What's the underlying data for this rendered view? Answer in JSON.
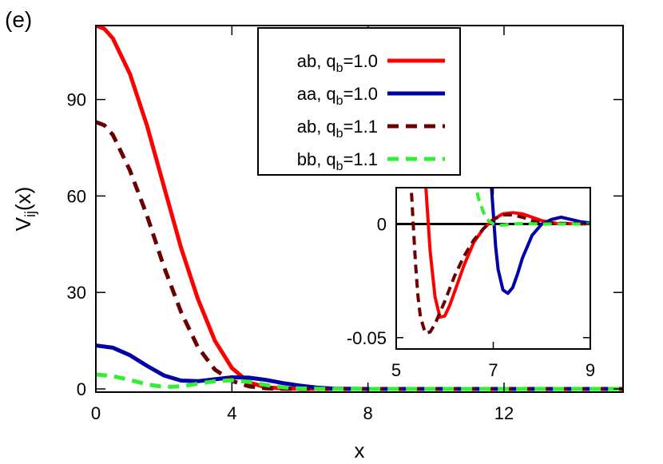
{
  "panel_label": "(e)",
  "colors": {
    "ab_q1_0": "#ff0000",
    "aa_q1_0": "#0000a8",
    "ab_q1_1": "#6b0000",
    "bb_q1_1": "#33ee33",
    "zero_line": "#000000"
  },
  "chart_data": [
    {
      "id": "main",
      "type": "line",
      "xlabel": "x",
      "ylabel": "V",
      "ylabel_sub": "ij",
      "ylabel_suffix": "(x)",
      "xlim": [
        0,
        15.5
      ],
      "ylim": [
        -1,
        113
      ],
      "x_ticks": [
        "0",
        "4",
        "8",
        "12"
      ],
      "x_tick_values": [
        0,
        4,
        8,
        12
      ],
      "y_ticks": [
        "0",
        "30",
        "60",
        "90"
      ],
      "y_tick_values": [
        0,
        30,
        60,
        90
      ],
      "legend_position": "top-center",
      "series": [
        {
          "key": "ab_q1_0",
          "name": "ab, q",
          "sub": "b",
          "suffix": "=1.0",
          "style": "solid",
          "x": [
            0,
            0.25,
            0.5,
            1.0,
            1.5,
            2.0,
            2.5,
            3.0,
            3.5,
            4.0,
            4.5,
            5.0,
            5.5,
            6.0,
            7.0,
            8.0,
            10.0,
            12.0,
            15.5
          ],
          "y": [
            113,
            112,
            109,
            98,
            82,
            63,
            44,
            28,
            15,
            6.5,
            2.0,
            0.5,
            0.15,
            0.05,
            0,
            0,
            0,
            0,
            0
          ]
        },
        {
          "key": "aa_q1_0",
          "name": "aa, q",
          "sub": "b",
          "suffix": "=1.0",
          "style": "solid",
          "x": [
            0,
            0.5,
            1.0,
            1.5,
            2.0,
            2.5,
            3.0,
            3.5,
            4.0,
            4.5,
            5.0,
            5.5,
            6.0,
            6.5,
            7.0,
            8.0,
            10.0,
            12.0,
            15.5
          ],
          "y": [
            13.5,
            12.8,
            10.5,
            7.2,
            4.2,
            2.6,
            2.4,
            3.0,
            3.6,
            3.5,
            2.8,
            1.8,
            1.0,
            0.4,
            0.1,
            0,
            0,
            0,
            0
          ]
        },
        {
          "key": "ab_q1_1",
          "name": "ab, q",
          "sub": "b",
          "suffix": "=1.1",
          "style": "dashed",
          "x": [
            0,
            0.25,
            0.5,
            1.0,
            1.5,
            2.0,
            2.5,
            3.0,
            3.5,
            4.0,
            4.5,
            5.0,
            5.5,
            6.0,
            7.0,
            8.0,
            10.0,
            12.0,
            15.5
          ],
          "y": [
            83,
            82,
            79,
            68,
            54,
            38,
            24,
            13,
            6,
            2.5,
            0.8,
            0.2,
            0.05,
            0,
            0,
            0,
            0,
            0,
            0
          ]
        },
        {
          "key": "bb_q1_1",
          "name": "bb, q",
          "sub": "b",
          "suffix": "=1.1",
          "style": "dashed",
          "x": [
            0,
            0.5,
            1.0,
            1.5,
            2.0,
            2.5,
            3.0,
            3.5,
            4.0,
            4.5,
            5.0,
            5.5,
            6.0,
            7.0,
            8.0,
            10.0,
            12.0,
            15.5
          ],
          "y": [
            4.5,
            4.0,
            2.8,
            1.4,
            0.6,
            0.8,
            1.6,
            2.4,
            2.7,
            2.2,
            1.2,
            0.5,
            0.15,
            0,
            0,
            0,
            0,
            0
          ]
        }
      ]
    },
    {
      "id": "inset",
      "type": "line",
      "xlim": [
        5,
        9
      ],
      "ylim": [
        -0.055,
        0.016
      ],
      "x_ticks": [
        "5",
        "7",
        "9"
      ],
      "x_tick_values": [
        5,
        7,
        9
      ],
      "y_ticks": [
        "0",
        "-0.05"
      ],
      "y_tick_values": [
        0,
        -0.05
      ],
      "series": [
        {
          "key": "ab_q1_0",
          "style": "solid",
          "x": [
            5.6,
            5.7,
            5.8,
            5.9,
            6.0,
            6.1,
            6.2,
            6.4,
            6.6,
            6.8,
            7.0,
            7.2,
            7.4,
            7.6,
            7.8,
            8.0,
            8.3,
            9.0
          ],
          "y": [
            0.02,
            -0.012,
            -0.032,
            -0.041,
            -0.0405,
            -0.036,
            -0.03,
            -0.018,
            -0.008,
            -0.002,
            0.002,
            0.0045,
            0.005,
            0.0045,
            0.003,
            0.0015,
            0.0003,
            0
          ]
        },
        {
          "key": "aa_q1_0",
          "style": "solid",
          "x": [
            6.95,
            7.0,
            7.05,
            7.1,
            7.2,
            7.3,
            7.4,
            7.5,
            7.6,
            7.8,
            8.0,
            8.2,
            8.4,
            8.6,
            8.8,
            9.0
          ],
          "y": [
            0.02,
            0.005,
            -0.01,
            -0.02,
            -0.029,
            -0.0305,
            -0.028,
            -0.022,
            -0.015,
            -0.005,
            0.0,
            0.002,
            0.003,
            0.002,
            0.001,
            0.0005
          ]
        },
        {
          "key": "ab_q1_1",
          "style": "dashed",
          "x": [
            5.3,
            5.35,
            5.4,
            5.45,
            5.5,
            5.6,
            5.7,
            5.8,
            6.0,
            6.2,
            6.4,
            6.6,
            6.8,
            7.0,
            7.2,
            7.4,
            7.6,
            7.8,
            8.0,
            9.0
          ],
          "y": [
            0.02,
            0.0,
            -0.018,
            -0.032,
            -0.041,
            -0.048,
            -0.0475,
            -0.044,
            -0.034,
            -0.023,
            -0.014,
            -0.007,
            -0.002,
            0.002,
            0.004,
            0.004,
            0.003,
            0.0015,
            0.0005,
            0
          ]
        },
        {
          "key": "bb_q1_1",
          "style": "dashed",
          "x": [
            6.6,
            6.7,
            6.8,
            6.9,
            7.0,
            7.1,
            7.2,
            7.4,
            7.6,
            8.0,
            9.0
          ],
          "y": [
            0.02,
            0.011,
            0.005,
            0.0015,
            0.0,
            -0.0005,
            -0.0004,
            0.0,
            0.0002,
            0.0,
            0
          ]
        }
      ]
    }
  ]
}
